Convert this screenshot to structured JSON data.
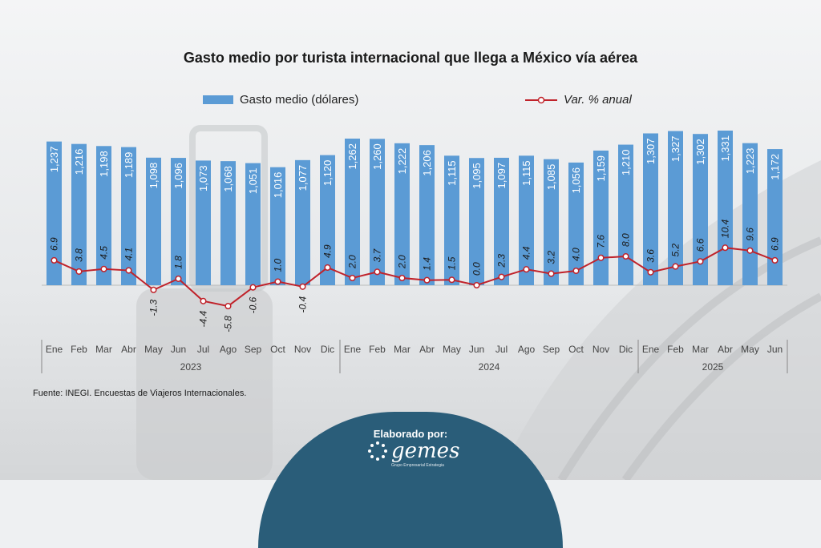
{
  "title": "Gasto medio por turista internacional que llega a México vía aérea",
  "legend": {
    "bar_label": "Gasto medio (dólares)",
    "line_label": "Var. % anual"
  },
  "source": "Fuente: INEGI. Encuestas de Viajeros Internacionales.",
  "badge": {
    "title": "Elaborado por:",
    "logo_text": "gemes",
    "logo_tagline": "Grupo Empresarial Estrategia"
  },
  "colors": {
    "bar": "#5b9bd5",
    "line": "#c0222a",
    "marker_fill": "#ffffff"
  },
  "chart_data": {
    "type": "bar+line",
    "categories": [
      "Ene",
      "Feb",
      "Mar",
      "Abr",
      "May",
      "Jun",
      "Jul",
      "Ago",
      "Sep",
      "Oct",
      "Nov",
      "Dic",
      "Ene",
      "Feb",
      "Mar",
      "Abr",
      "May",
      "Jun",
      "Jul",
      "Ago",
      "Sep",
      "Oct",
      "Nov",
      "Dic",
      "Ene",
      "Feb",
      "Mar",
      "Abr",
      "May",
      "Jun"
    ],
    "year_groups": [
      {
        "label": "2023",
        "count": 12
      },
      {
        "label": "2024",
        "count": 12
      },
      {
        "label": "2025",
        "count": 6
      }
    ],
    "series": [
      {
        "name": "Gasto medio (dólares)",
        "type": "bar",
        "values": [
          1237,
          1216,
          1198,
          1189,
          1098,
          1096,
          1073,
          1068,
          1051,
          1016,
          1077,
          1120,
          1262,
          1260,
          1222,
          1206,
          1115,
          1095,
          1097,
          1115,
          1085,
          1056,
          1159,
          1210,
          1307,
          1327,
          1302,
          1331,
          1223,
          1172
        ],
        "labels": [
          "1,237",
          "1,216",
          "1,198",
          "1,189",
          "1,098",
          "1,096",
          "1,073",
          "1,068",
          "1,051",
          "1,016",
          "1,077",
          "1,120",
          "1,262",
          "1,260",
          "1,222",
          "1,206",
          "1,115",
          "1,095",
          "1,097",
          "1,115",
          "1,085",
          "1,056",
          "1,159",
          "1,210",
          "1,307",
          "1,327",
          "1,302",
          "1,331",
          "1,223",
          "1,172"
        ]
      },
      {
        "name": "Var. % anual",
        "type": "line",
        "values": [
          6.9,
          3.8,
          4.5,
          4.1,
          -1.3,
          1.8,
          -4.4,
          -5.8,
          -0.6,
          1.0,
          -0.4,
          4.9,
          2.0,
          3.7,
          2.0,
          1.4,
          1.5,
          0.0,
          2.3,
          4.4,
          3.2,
          4.0,
          7.6,
          8.0,
          3.6,
          5.2,
          6.6,
          10.4,
          9.6,
          6.9
        ],
        "labels": [
          "6.9",
          "3.8",
          "4.5",
          "4.1",
          "-1.3",
          "1.8",
          "-4.4",
          "-5.8",
          "-0.6",
          "1.0",
          "-0.4",
          "4.9",
          "2.0",
          "3.7",
          "2.0",
          "1.4",
          "1.5",
          "0.0",
          "2.3",
          "4.4",
          "3.2",
          "4.0",
          "7.6",
          "8.0",
          "3.6",
          "5.2",
          "6.6",
          "10.4",
          "9.6",
          "6.9"
        ]
      }
    ]
  }
}
